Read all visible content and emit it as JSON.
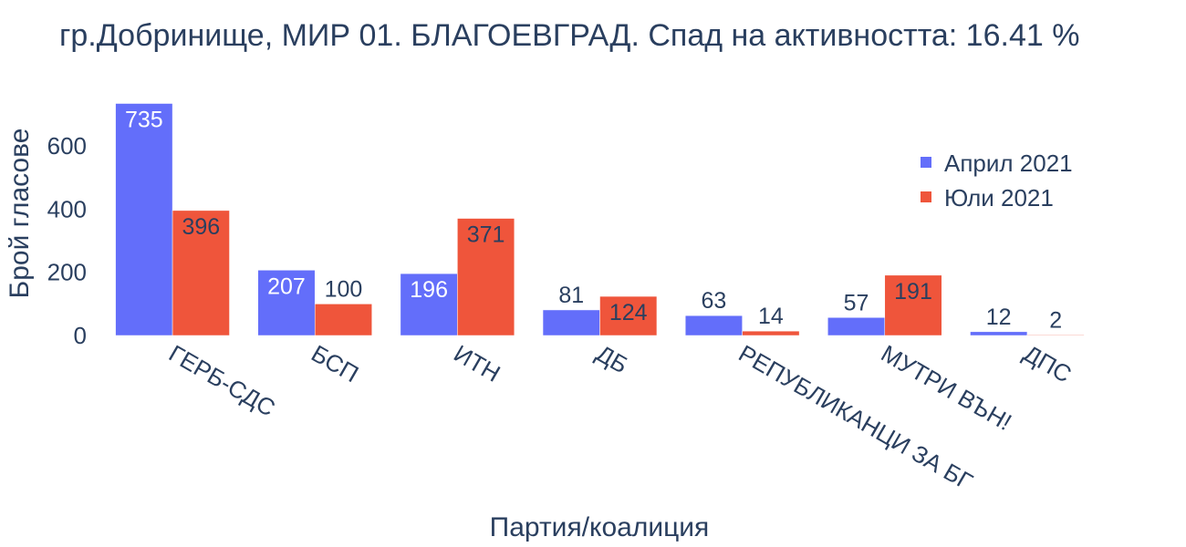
{
  "chart_data": {
    "type": "bar",
    "title": "гр.Добринище, МИР 01. БЛАГОЕВГРАД. Спад на активността: 16.41 %",
    "xlabel": "Партия/коалиция",
    "ylabel": "Брой гласове",
    "categories": [
      "ГЕРБ-СДС",
      "БСП",
      "ИТН",
      "ДБ",
      "РЕПУБЛИКАНЦИ ЗА БГ",
      "МУТРИ ВЪН!",
      "ДПС"
    ],
    "series": [
      {
        "name": "Април 2021",
        "color": "#636efa",
        "values": [
          735,
          207,
          196,
          81,
          63,
          57,
          12
        ]
      },
      {
        "name": "Юли 2021",
        "color": "#ef553b",
        "values": [
          396,
          100,
          371,
          124,
          14,
          191,
          2
        ]
      }
    ],
    "yticks": [
      0,
      200,
      400,
      600
    ],
    "ylim": [
      0,
      774
    ],
    "grid": false,
    "legend": "top-right"
  }
}
